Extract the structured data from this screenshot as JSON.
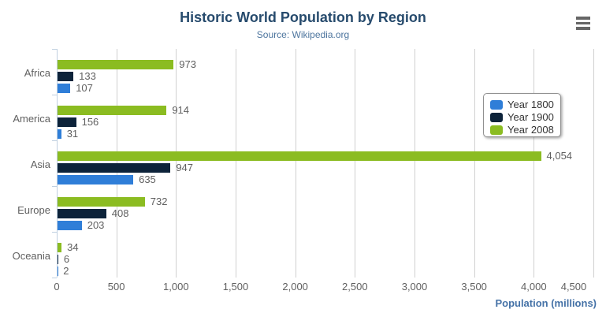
{
  "menu": {
    "icon": "hamburger-icon",
    "tooltip_label": "Chart context menu"
  },
  "colors": {
    "title": "#274b6d",
    "subtitle": "#4d759e",
    "axis_title": "#4572a7",
    "labels": "#606060",
    "gridline": "#d0d0d0",
    "axis_line": "#c0d0e0",
    "legend_border": "#909090",
    "legend_text": "#333333"
  },
  "chart_data": {
    "type": "bar",
    "orientation": "horizontal",
    "title": "Historic World Population by Region",
    "subtitle": "Source: Wikipedia.org",
    "categories": [
      "Africa",
      "America",
      "Asia",
      "Europe",
      "Oceania"
    ],
    "series": [
      {
        "name": "Year 1800",
        "color": "#2f7ed8",
        "values": [
          107,
          31,
          635,
          203,
          2
        ]
      },
      {
        "name": "Year 1900",
        "color": "#0d233a",
        "values": [
          133,
          156,
          947,
          408,
          6
        ]
      },
      {
        "name": "Year 2008",
        "color": "#8bbc21",
        "values": [
          973,
          914,
          4054,
          732,
          34
        ]
      }
    ],
    "series_display_order_top_to_bottom": [
      "Year 2008",
      "Year 1900",
      "Year 1800"
    ],
    "xlabel": "Population (millions)",
    "ylabel": "",
    "xlim": [
      0,
      4500
    ],
    "tick_values": [
      0,
      500,
      1000,
      1500,
      2000,
      2500,
      3000,
      3500,
      4000,
      4500
    ],
    "tick_labels": [
      "0",
      "500",
      "1,000",
      "1,500",
      "2,000",
      "2,500",
      "3,000",
      "3,500",
      "4,000",
      "4,500"
    ],
    "grid": true,
    "data_labels": true,
    "legend_position": "right"
  }
}
